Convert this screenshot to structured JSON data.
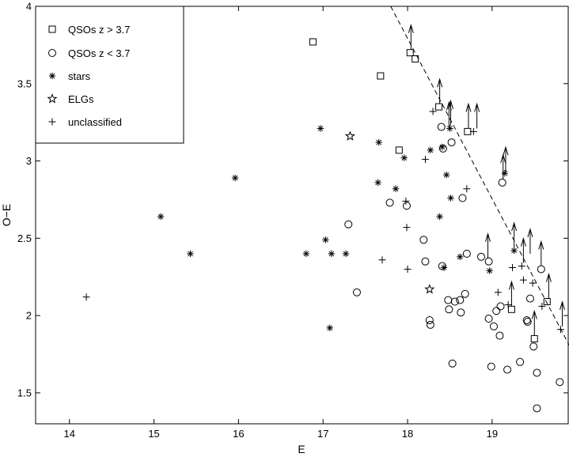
{
  "chart_data": {
    "type": "scatter",
    "xlabel": "E",
    "ylabel": "O−E",
    "xlim": [
      13.6,
      19.9
    ],
    "ylim": [
      1.3,
      4.0
    ],
    "xticks": [
      "14",
      "15",
      "16",
      "17",
      "18",
      "19"
    ],
    "yticks": [
      "1.5",
      "2",
      "2.5",
      "3",
      "3.5",
      "4"
    ],
    "legend_position": "top-left",
    "grid": false,
    "series": [
      {
        "name": "QSOs z > 3.7",
        "marker": "square",
        "points": [
          [
            16.88,
            3.77
          ],
          [
            17.68,
            3.55
          ],
          [
            18.03,
            3.7
          ],
          [
            18.09,
            3.66
          ],
          [
            17.9,
            3.07
          ],
          [
            18.37,
            3.35
          ],
          [
            18.71,
            3.19
          ],
          [
            19.23,
            2.04
          ],
          [
            19.5,
            1.85
          ],
          [
            19.65,
            2.09
          ]
        ]
      },
      {
        "name": "QSOs z < 3.7",
        "marker": "circle",
        "points": [
          [
            18.4,
            3.22
          ],
          [
            18.42,
            3.08
          ],
          [
            18.52,
            3.12
          ],
          [
            19.12,
            2.86
          ],
          [
            17.3,
            2.59
          ],
          [
            17.4,
            2.15
          ],
          [
            17.79,
            2.73
          ],
          [
            17.99,
            2.71
          ],
          [
            18.19,
            2.49
          ],
          [
            18.21,
            2.35
          ],
          [
            18.26,
            1.97
          ],
          [
            18.27,
            1.94
          ],
          [
            18.41,
            2.32
          ],
          [
            18.48,
            2.1
          ],
          [
            18.49,
            2.04
          ],
          [
            18.53,
            1.69
          ],
          [
            18.56,
            2.09
          ],
          [
            18.62,
            2.1
          ],
          [
            18.63,
            2.02
          ],
          [
            18.65,
            2.76
          ],
          [
            18.68,
            2.14
          ],
          [
            18.7,
            2.4
          ],
          [
            18.87,
            2.38
          ],
          [
            18.96,
            2.35
          ],
          [
            18.96,
            1.98
          ],
          [
            18.99,
            1.67
          ],
          [
            19.02,
            1.93
          ],
          [
            19.05,
            2.03
          ],
          [
            19.09,
            1.87
          ],
          [
            19.1,
            2.06
          ],
          [
            19.18,
            1.65
          ],
          [
            19.33,
            1.7
          ],
          [
            19.41,
            1.97
          ],
          [
            19.42,
            1.96
          ],
          [
            19.45,
            2.11
          ],
          [
            19.49,
            1.8
          ],
          [
            19.53,
            1.63
          ],
          [
            19.58,
            2.3
          ],
          [
            19.53,
            1.4
          ],
          [
            19.8,
            1.57
          ]
        ]
      },
      {
        "name": "stars",
        "marker": "asterisk",
        "points": [
          [
            15.08,
            2.64
          ],
          [
            15.43,
            2.4
          ],
          [
            15.96,
            2.89
          ],
          [
            16.8,
            2.4
          ],
          [
            16.97,
            3.21
          ],
          [
            17.03,
            2.49
          ],
          [
            17.08,
            1.92
          ],
          [
            17.1,
            2.4
          ],
          [
            17.27,
            2.4
          ],
          [
            17.65,
            2.86
          ],
          [
            17.66,
            3.12
          ],
          [
            17.86,
            2.82
          ],
          [
            17.96,
            3.02
          ],
          [
            18.27,
            3.07
          ],
          [
            18.38,
            2.64
          ],
          [
            18.41,
            3.09
          ],
          [
            18.46,
            2.91
          ],
          [
            18.5,
            3.21
          ],
          [
            18.51,
            2.76
          ],
          [
            18.62,
            2.38
          ],
          [
            18.97,
            2.29
          ],
          [
            19.15,
            2.92
          ],
          [
            19.26,
            2.42
          ],
          [
            18.43,
            2.31
          ]
        ]
      },
      {
        "name": "ELGs",
        "marker": "star",
        "points": [
          [
            17.32,
            3.16
          ],
          [
            18.26,
            2.17
          ]
        ]
      },
      {
        "name": "unclassified",
        "marker": "plus",
        "points": [
          [
            14.2,
            2.12
          ],
          [
            17.7,
            2.36
          ],
          [
            18.0,
            2.3
          ],
          [
            17.99,
            2.57
          ],
          [
            17.98,
            2.74
          ],
          [
            18.21,
            3.01
          ],
          [
            18.3,
            3.32
          ],
          [
            18.7,
            2.82
          ],
          [
            18.78,
            3.19
          ],
          [
            19.07,
            2.15
          ],
          [
            19.19,
            2.07
          ],
          [
            19.24,
            2.31
          ],
          [
            19.35,
            2.32
          ],
          [
            19.37,
            2.23
          ],
          [
            19.48,
            2.21
          ],
          [
            19.59,
            2.06
          ],
          [
            19.81,
            1.91
          ]
        ]
      }
    ],
    "upper_limits": [
      [
        18.04,
        3.72
      ],
      [
        18.38,
        3.37
      ],
      [
        18.49,
        3.22
      ],
      [
        18.51,
        3.23
      ],
      [
        18.72,
        3.21
      ],
      [
        18.82,
        3.21
      ],
      [
        19.13,
        2.88
      ],
      [
        19.16,
        2.93
      ],
      [
        18.95,
        2.37
      ],
      [
        19.23,
        2.06
      ],
      [
        19.26,
        2.44
      ],
      [
        19.37,
        2.34
      ],
      [
        19.45,
        2.4
      ],
      [
        19.58,
        2.32
      ],
      [
        19.5,
        1.87
      ],
      [
        19.67,
        2.11
      ],
      [
        19.83,
        1.93
      ]
    ],
    "dashed_line": [
      [
        17.8,
        4.0
      ],
      [
        19.92,
        1.8
      ]
    ]
  }
}
